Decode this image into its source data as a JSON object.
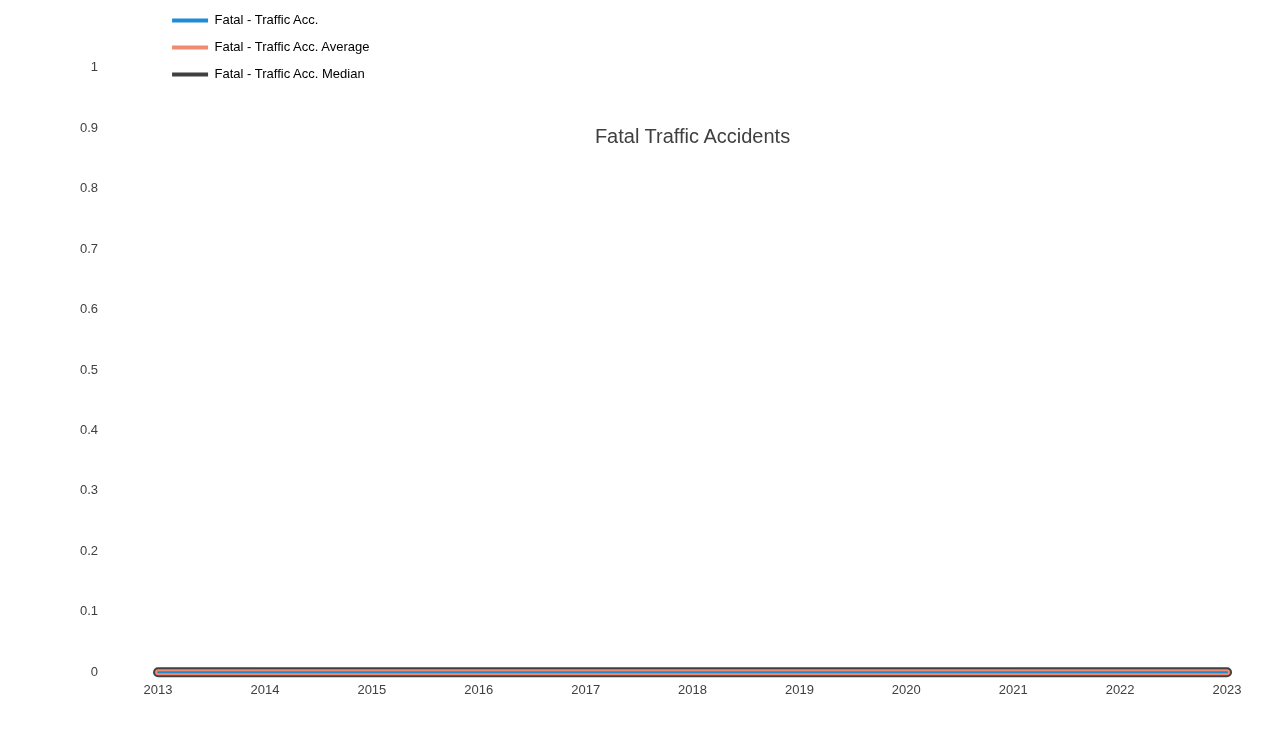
{
  "chart_data": {
    "type": "line",
    "title": "Fatal Traffic Accidents",
    "categories": [
      "2013",
      "2014",
      "2015",
      "2016",
      "2017",
      "2018",
      "2019",
      "2020",
      "2021",
      "2022",
      "2023"
    ],
    "series": [
      {
        "name": "Fatal - Traffic Acc.",
        "color": "#1f8ad6",
        "values": [
          0,
          0,
          0,
          0,
          0,
          0,
          0,
          0,
          0,
          0,
          0
        ]
      },
      {
        "name": "Fatal - Traffic Acc. Average",
        "color": "#f08a70",
        "values": [
          0,
          0,
          0,
          0,
          0,
          0,
          0,
          0,
          0,
          0,
          0
        ]
      },
      {
        "name": "Fatal - Traffic Acc. Median",
        "color": "#404040",
        "values": [
          0,
          0,
          0,
          0,
          0,
          0,
          0,
          0,
          0,
          0,
          0
        ]
      }
    ],
    "ylim": [
      0,
      1
    ],
    "yticks": [
      0,
      0.1,
      0.2,
      0.3,
      0.4,
      0.5,
      0.6,
      0.7,
      0.8,
      0.9,
      1
    ],
    "grid": false,
    "legend": "top left",
    "marker": "none",
    "line_style": "solid"
  }
}
